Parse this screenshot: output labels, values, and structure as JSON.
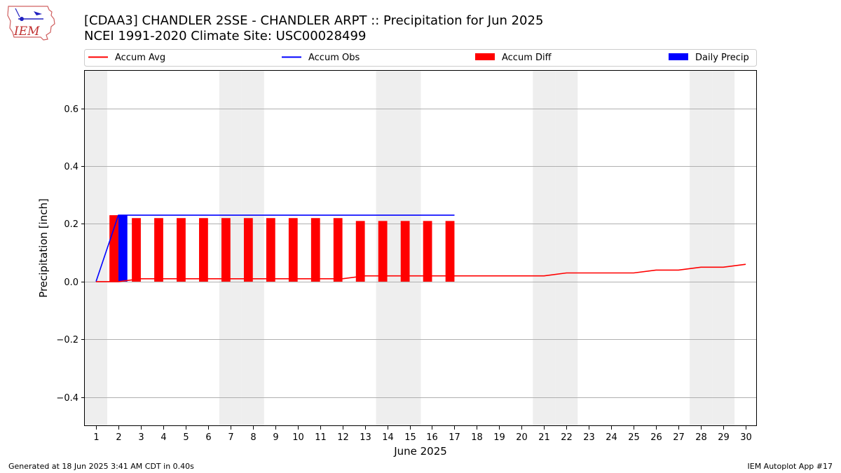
{
  "logo": {
    "text": "IEM"
  },
  "footer": {
    "left": "Generated at 18 Jun 2025 3:41 AM CDT in 0.40s",
    "right": "IEM Autoplot App #17"
  },
  "colors": {
    "accum_avg": "#ff0000",
    "accum_obs": "#0000ff",
    "accum_diff": "#ff0000",
    "daily_precip": "#0000ff",
    "weekend_shade": "#eeeeee",
    "grid": "#b0b0b0"
  },
  "chart_data": {
    "type": "bar",
    "title": "[CDAA3] CHANDLER 2SSE - CHANDLER ARPT :: Precipitation for Jun 2025",
    "subtitle": "NCEI 1991-2020 Climate Site: USC00028499",
    "xlabel": "June 2025",
    "ylabel": "Precipitation [inch]",
    "xlim": [
      0.5,
      30.5
    ],
    "ylim": [
      -0.5,
      0.73
    ],
    "yticks": [
      -0.4,
      -0.2,
      0.0,
      0.2,
      0.4,
      0.6
    ],
    "ytick_labels": [
      "−0.4",
      "−0.2",
      "0.0",
      "0.2",
      "0.4",
      "0.6"
    ],
    "xticks": [
      1,
      2,
      3,
      4,
      5,
      6,
      7,
      8,
      9,
      10,
      11,
      12,
      13,
      14,
      15,
      16,
      17,
      18,
      19,
      20,
      21,
      22,
      23,
      24,
      25,
      26,
      27,
      28,
      29,
      30
    ],
    "xtick_labels": [
      "1",
      "2",
      "3",
      "4",
      "5",
      "6",
      "7",
      "8",
      "9",
      "10",
      "11",
      "12",
      "13",
      "14",
      "15",
      "16",
      "17",
      "18",
      "19",
      "20",
      "21",
      "22",
      "23",
      "24",
      "25",
      "26",
      "27",
      "28",
      "29",
      "30"
    ],
    "grid": "y",
    "legend_placement": "top",
    "shaded_days": [
      1,
      7,
      8,
      14,
      15,
      21,
      22,
      28,
      29
    ],
    "legend": [
      {
        "name": "Accum Avg",
        "kind": "line",
        "color": "#ff0000"
      },
      {
        "name": "Accum Obs",
        "kind": "line",
        "color": "#0000ff"
      },
      {
        "name": "Accum Diff",
        "kind": "bar",
        "color": "#ff0000"
      },
      {
        "name": "Daily Precip",
        "kind": "bar",
        "color": "#0000ff"
      }
    ],
    "accum_avg": {
      "x": [
        1,
        2,
        3,
        4,
        5,
        6,
        7,
        8,
        9,
        10,
        11,
        12,
        13,
        14,
        15,
        16,
        17,
        18,
        19,
        20,
        21,
        22,
        23,
        24,
        25,
        26,
        27,
        28,
        29,
        30
      ],
      "y": [
        0.0,
        0.0,
        0.01,
        0.01,
        0.01,
        0.01,
        0.01,
        0.01,
        0.01,
        0.01,
        0.01,
        0.01,
        0.02,
        0.02,
        0.02,
        0.02,
        0.02,
        0.02,
        0.02,
        0.02,
        0.02,
        0.03,
        0.03,
        0.03,
        0.03,
        0.04,
        0.04,
        0.05,
        0.05,
        0.06
      ]
    },
    "accum_obs": {
      "x": [
        1,
        2,
        3,
        4,
        5,
        6,
        7,
        8,
        9,
        10,
        11,
        12,
        13,
        14,
        15,
        16,
        17
      ],
      "y": [
        0.0,
        0.23,
        0.23,
        0.23,
        0.23,
        0.23,
        0.23,
        0.23,
        0.23,
        0.23,
        0.23,
        0.23,
        0.23,
        0.23,
        0.23,
        0.23,
        0.23
      ]
    },
    "accum_diff": {
      "x": [
        1,
        2,
        3,
        4,
        5,
        6,
        7,
        8,
        9,
        10,
        11,
        12,
        13,
        14,
        15,
        16,
        17
      ],
      "y": [
        0.0,
        0.23,
        0.22,
        0.22,
        0.22,
        0.22,
        0.22,
        0.22,
        0.22,
        0.22,
        0.22,
        0.22,
        0.21,
        0.21,
        0.21,
        0.21,
        0.21
      ]
    },
    "daily_precip": {
      "x": [
        1,
        2,
        3,
        4,
        5,
        6,
        7,
        8,
        9,
        10,
        11,
        12,
        13,
        14,
        15,
        16,
        17
      ],
      "y": [
        0.0,
        0.23,
        0,
        0,
        0,
        0,
        0,
        0,
        0,
        0,
        0,
        0,
        0,
        0,
        0,
        0,
        0
      ]
    }
  }
}
